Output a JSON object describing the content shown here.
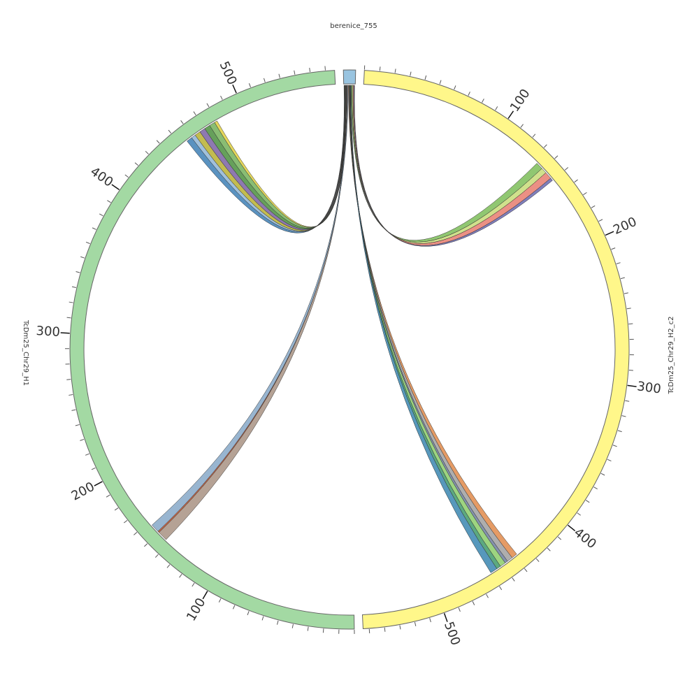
{
  "chart_data": {
    "type": "chord",
    "segments": [
      {
        "name": "berenice_755",
        "length": 8,
        "color": "#99c4e0"
      },
      {
        "name": "TcDm25_Chr29_H2_c2",
        "length": 554,
        "color": "#fff78a",
        "ticks": [
          100,
          200,
          300,
          400,
          500
        ],
        "minor_tick_interval": 10
      },
      {
        "name": "TcDm25_Chr29_H1",
        "length": 566,
        "color": "#a3d9a3",
        "ticks": [
          100,
          200,
          300,
          400,
          500
        ],
        "minor_tick_interval": 10
      }
    ],
    "links": [
      {
        "source": [
          0.2,
          0.5
        ],
        "target": "TcDm25_Chr29_H1",
        "target_range": [
          455,
          459
        ],
        "color": "#3d7fb5"
      },
      {
        "source": [
          0.5,
          0.8
        ],
        "target": "TcDm25_Chr29_H1",
        "target_range": [
          459,
          462
        ],
        "color": "#8fb5d5"
      },
      {
        "source": [
          0.8,
          1.1
        ],
        "target": "TcDm25_Chr29_H1",
        "target_range": [
          462,
          466
        ],
        "color": "#b8b030"
      },
      {
        "source": [
          1.1,
          1.4
        ],
        "target": "TcDm25_Chr29_H1",
        "target_range": [
          466,
          470
        ],
        "color": "#7a62a3"
      },
      {
        "source": [
          1.4,
          1.7
        ],
        "target": "TcDm25_Chr29_H1",
        "target_range": [
          470,
          474
        ],
        "color": "#4b8f3e"
      },
      {
        "source": [
          1.7,
          1.9
        ],
        "target": "TcDm25_Chr29_H1",
        "target_range": [
          474,
          478
        ],
        "color": "#74b25a"
      },
      {
        "source": [
          1.9,
          2.0
        ],
        "target": "TcDm25_Chr29_H1",
        "target_range": [
          478,
          480
        ],
        "color": "#e0d040"
      },
      {
        "source": [
          2.0,
          2.5
        ],
        "target": "TcDm25_Chr29_H1",
        "target_range": [
          143,
          150
        ],
        "color": "#a89282"
      },
      {
        "source": [
          2.5,
          2.55
        ],
        "target": "TcDm25_Chr29_H1",
        "target_range": [
          150,
          151
        ],
        "color": "#c0502a"
      },
      {
        "source": [
          2.55,
          3.0
        ],
        "target": "TcDm25_Chr29_H1",
        "target_range": [
          151,
          157
        ],
        "color": "#86a8c8"
      },
      {
        "source": [
          3.2,
          3.6
        ],
        "target": "TcDm25_Chr29_H2_c2",
        "target_range": [
          438,
          442
        ],
        "color": "#e08a4a"
      },
      {
        "source": [
          3.6,
          4.0
        ],
        "target": "TcDm25_Chr29_H2_c2",
        "target_range": [
          442,
          446
        ],
        "color": "#a0a0a0"
      },
      {
        "source": [
          4.0,
          4.2
        ],
        "target": "TcDm25_Chr29_H2_c2",
        "target_range": [
          446,
          448
        ],
        "color": "#6f7f9f"
      },
      {
        "source": [
          4.2,
          4.5
        ],
        "target": "TcDm25_Chr29_H2_c2",
        "target_range": [
          448,
          452
        ],
        "color": "#8ccc6a"
      },
      {
        "source": [
          4.5,
          4.7
        ],
        "target": "TcDm25_Chr29_H2_c2",
        "target_range": [
          452,
          455
        ],
        "color": "#3f9a6a"
      },
      {
        "source": [
          4.7,
          5.0
        ],
        "target": "TcDm25_Chr29_H2_c2",
        "target_range": [
          455,
          460
        ],
        "color": "#3a86b0"
      },
      {
        "source": [
          5.2,
          5.9
        ],
        "target": "TcDm25_Chr29_H2_c2",
        "target_range": [
          134,
          139
        ],
        "color": "#7dbd58"
      },
      {
        "source": [
          5.9,
          6.5
        ],
        "target": "TcDm25_Chr29_H2_c2",
        "target_range": [
          139,
          143
        ],
        "color": "#c8dc78"
      },
      {
        "source": [
          6.5,
          7.1
        ],
        "target": "TcDm25_Chr29_H2_c2",
        "target_range": [
          143,
          148
        ],
        "color": "#e87c6e"
      },
      {
        "source": [
          7.1,
          7.5
        ],
        "target": "TcDm25_Chr29_H2_c2",
        "target_range": [
          148,
          150
        ],
        "color": "#6a68b0"
      }
    ]
  }
}
